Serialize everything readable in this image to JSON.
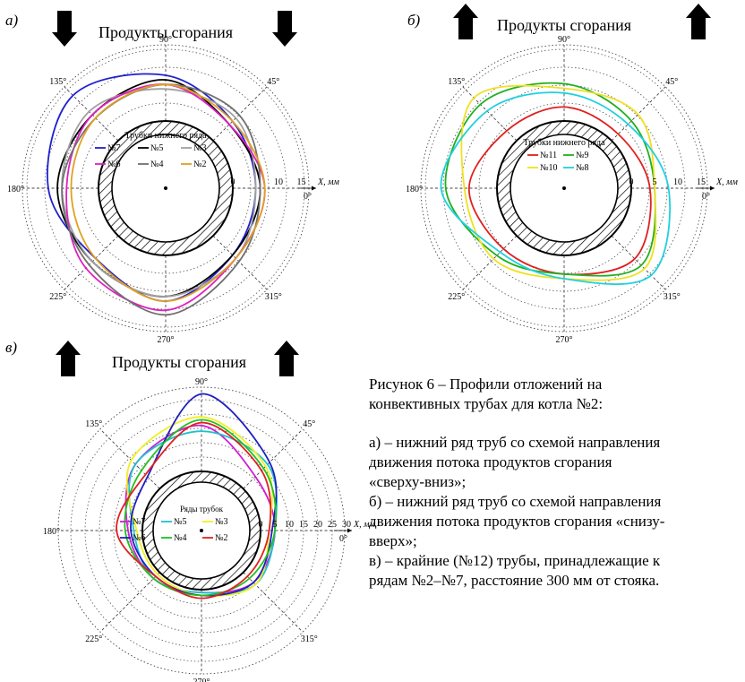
{
  "panels": [
    {
      "id": "a",
      "letter": "а)",
      "header": "Продукты сгорания",
      "arrow_direction": "down",
      "legend_title": "Трубки нижнего ряда",
      "r_ticks": [
        0,
        10,
        15
      ],
      "axis_label": "X, мм",
      "angle_labels": [
        "0°",
        "45°",
        "90°",
        "135°",
        "180°",
        "225°",
        "270°",
        "315°"
      ]
    },
    {
      "id": "b",
      "letter": "б)",
      "header": "Продукты сгорания",
      "arrow_direction": "up",
      "legend_title": "Трубки нижнего ряда",
      "r_ticks": [
        0,
        5,
        10,
        15
      ],
      "axis_label": "X, мм",
      "angle_labels": [
        "0°",
        "45°",
        "90°",
        "135°",
        "180°",
        "225°",
        "270°",
        "315°"
      ]
    },
    {
      "id": "c",
      "letter": "в)",
      "header": "Продукты сгорания",
      "arrow_direction": "up",
      "legend_title": "Ряды трубок",
      "r_ticks": [
        0,
        5,
        10,
        15,
        20,
        25,
        30
      ],
      "axis_label": "X, мм",
      "angle_labels": [
        "0°",
        "45°",
        "90°",
        "135°",
        "180°",
        "225°",
        "270°",
        "315°"
      ]
    }
  ],
  "caption": {
    "lines": [
      "Рисунок 6 – Профили отложений на",
      "конвективных трубах для котла №2:",
      "",
      "а) – нижний ряд труб со схемой направления",
      "движения потока продуктов сгорания",
      "«сверху-вниз»;",
      "б) – нижний ряд труб со схемой направления",
      "движения потока продуктов сгорания «снизу-",
      "вверх»;",
      "в) – крайние (№12) трубы, принадлежащие к",
      "рядам №2–№7, расстояние 300 мм от стояка."
    ]
  },
  "chart_data": [
    {
      "type": "polar-line",
      "title": "Продукты сгорания",
      "legend_title": "Трубки нижнего ряда",
      "theta_unit": "deg",
      "r_unit": "мм",
      "r_range": [
        0,
        15
      ],
      "r_label": "X, мм",
      "angles": [
        0,
        45,
        90,
        135,
        180,
        225,
        270,
        315
      ],
      "series": [
        {
          "name": "№7",
          "color": "#2020d0",
          "r": [
            5,
            6,
            10,
            14,
            11,
            7,
            10,
            6
          ]
        },
        {
          "name": "№5",
          "color": "#000000",
          "r": [
            6,
            5,
            9,
            8,
            9,
            8,
            9,
            6
          ]
        },
        {
          "name": "№3",
          "color": "#a0a0a0",
          "r": [
            5,
            7,
            7,
            9,
            8,
            8,
            9,
            7
          ]
        },
        {
          "name": "№6",
          "color": "#e020c0",
          "r": [
            7,
            5,
            8,
            8,
            7,
            10,
            12,
            7
          ]
        },
        {
          "name": "№4",
          "color": "#707070",
          "r": [
            6,
            8,
            8,
            7,
            8,
            9,
            13,
            8
          ]
        },
        {
          "name": "№2",
          "color": "#e0a020",
          "r": [
            7,
            6,
            8,
            7,
            6,
            7,
            10,
            7
          ]
        }
      ]
    },
    {
      "type": "polar-line",
      "title": "Продукты сгорания",
      "legend_title": "Трубки нижнего ряда",
      "theta_unit": "deg",
      "r_unit": "мм",
      "r_range": [
        0,
        15
      ],
      "r_label": "X, мм",
      "angles": [
        0,
        45,
        90,
        135,
        180,
        225,
        270,
        315
      ],
      "series": [
        {
          "name": "№11",
          "color": "#e02020",
          "r": [
            4,
            2,
            3,
            3,
            6,
            4,
            4,
            7
          ]
        },
        {
          "name": "№9",
          "color": "#20b020",
          "r": [
            5,
            6,
            8,
            11,
            11,
            6,
            4,
            9
          ]
        },
        {
          "name": "№10",
          "color": "#f0e020",
          "r": [
            5,
            8,
            7,
            13,
            7,
            7,
            5,
            10
          ]
        },
        {
          "name": "№8",
          "color": "#20d0e0",
          "r": [
            8,
            5,
            6,
            9,
            12,
            5,
            5,
            12
          ]
        }
      ]
    },
    {
      "type": "polar-line",
      "title": "Продукты сгорания",
      "legend_title": "Ряды трубок",
      "theta_unit": "deg",
      "r_unit": "мм",
      "r_range": [
        0,
        30
      ],
      "r_label": "X, мм",
      "angles": [
        0,
        45,
        90,
        135,
        180,
        225,
        270,
        315
      ],
      "series": [
        {
          "name": "№7",
          "color": "#d020d0",
          "r": [
            5,
            6,
            16,
            12,
            5,
            3,
            1,
            5
          ]
        },
        {
          "name": "№5",
          "color": "#20c0d0",
          "r": [
            5,
            12,
            14,
            12,
            3,
            3,
            1,
            6
          ]
        },
        {
          "name": "№3",
          "color": "#f0f020",
          "r": [
            3,
            11,
            19,
            14,
            2,
            1,
            2,
            6
          ]
        },
        {
          "name": "№6",
          "color": "#2020c0",
          "r": [
            4,
            13,
            27,
            6,
            4,
            2,
            2,
            5
          ]
        },
        {
          "name": "№4",
          "color": "#20c020",
          "r": [
            5,
            10,
            18,
            9,
            6,
            3,
            2,
            3
          ]
        },
        {
          "name": "№2",
          "color": "#e02020",
          "r": [
            3,
            9,
            17,
            7,
            9,
            2,
            3,
            2
          ]
        }
      ]
    }
  ]
}
